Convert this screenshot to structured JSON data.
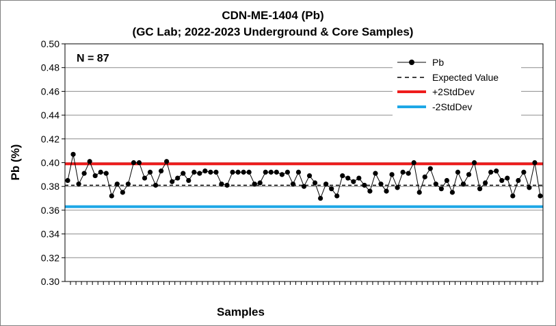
{
  "chart_data": {
    "type": "line",
    "title": "CDN-ME-1404 (Pb)",
    "subtitle": "(GC Lab; 2022-2023 Underground & Core Samples)",
    "xlabel": "Samples",
    "ylabel": "Pb (%)",
    "ylim": [
      0.3,
      0.5
    ],
    "yticks": [
      "0.30",
      "0.32",
      "0.34",
      "0.36",
      "0.38",
      "0.40",
      "0.42",
      "0.44",
      "0.46",
      "0.48",
      "0.50"
    ],
    "grid": "horizontal",
    "legend_position": "top-right",
    "annotation": "N = 87",
    "series": [
      {
        "name": "Pb",
        "color": "#000000",
        "values": [
          0.385,
          0.407,
          0.382,
          0.391,
          0.401,
          0.389,
          0.392,
          0.391,
          0.372,
          0.382,
          0.375,
          0.382,
          0.4,
          0.4,
          0.387,
          0.392,
          0.381,
          0.393,
          0.401,
          0.384,
          0.387,
          0.391,
          0.385,
          0.392,
          0.391,
          0.393,
          0.392,
          0.392,
          0.382,
          0.381,
          0.392,
          0.392,
          0.392,
          0.392,
          0.382,
          0.383,
          0.392,
          0.392,
          0.392,
          0.39,
          0.392,
          0.382,
          0.392,
          0.38,
          0.389,
          0.383,
          0.37,
          0.382,
          0.378,
          0.372,
          0.389,
          0.387,
          0.384,
          0.387,
          0.381,
          0.376,
          0.391,
          0.382,
          0.376,
          0.39,
          0.379,
          0.392,
          0.391,
          0.4,
          0.375,
          0.388,
          0.395,
          0.382,
          0.378,
          0.385,
          0.375,
          0.392,
          0.382,
          0.39,
          0.4,
          0.378,
          0.383,
          0.392,
          0.393,
          0.385,
          0.387,
          0.372,
          0.385,
          0.392,
          0.379,
          0.4,
          0.372
        ]
      },
      {
        "name": "Expected Value",
        "color": "#000000",
        "value": 0.381
      },
      {
        "name": "+2StdDev",
        "color": "#ee1c1c",
        "value": 0.399
      },
      {
        "name": "-2StdDev",
        "color": "#1ea7e6",
        "value": 0.363
      }
    ]
  }
}
